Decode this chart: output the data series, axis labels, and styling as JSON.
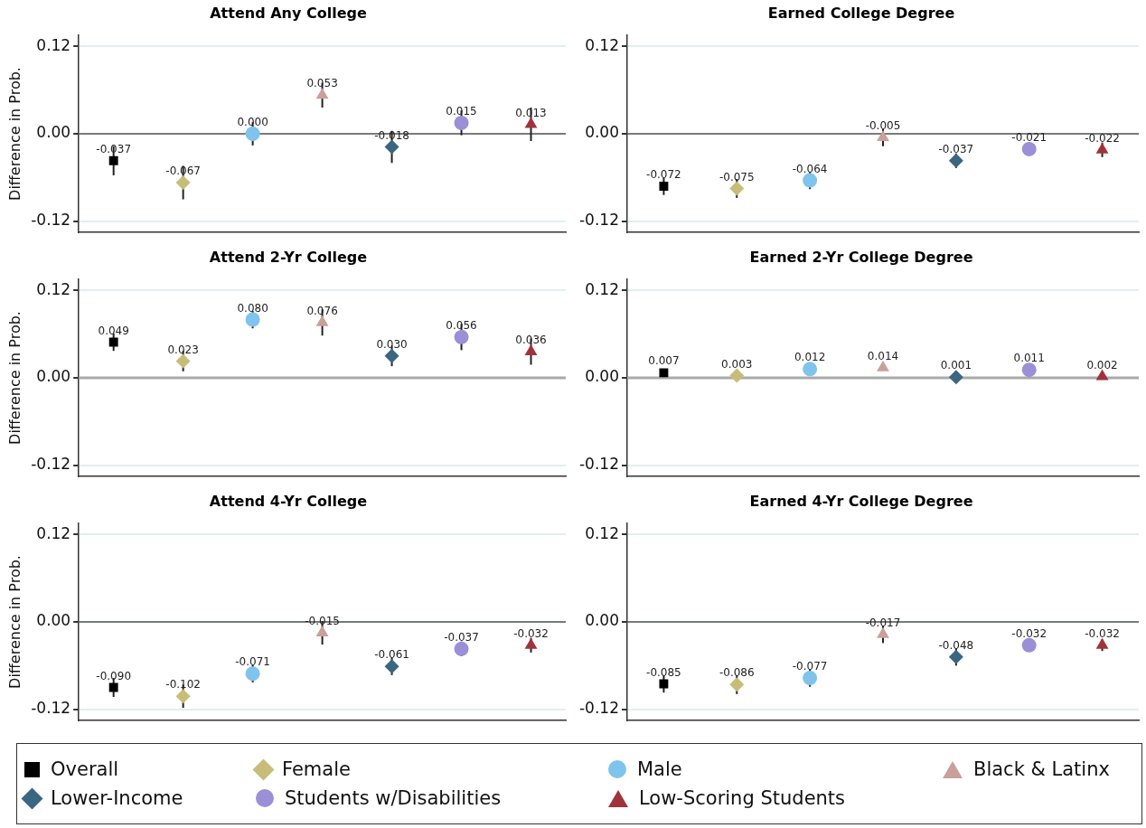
{
  "chart_data": [
    {
      "type": "scatter",
      "title": "Attend Any College",
      "ylabel": "Difference in Prob.",
      "categories": [
        null,
        null,
        null,
        null,
        null,
        null,
        null
      ],
      "ylim": [
        -0.135,
        0.135
      ],
      "yticks": [
        {
          "value": -0.12,
          "label": "-0.12"
        },
        {
          "value": 0,
          "label": "0.00"
        },
        {
          "value": 0.12,
          "label": "0.12"
        }
      ],
      "grid": "y",
      "tick_labels": "y",
      "data_labels": true,
      "legend": "bottom",
      "ref_lines": [
        {
          "axis": "y",
          "value": 0,
          "color": "#555555"
        }
      ],
      "series": [
        {
          "name": "Overall",
          "color": "#000000",
          "marker": "square",
          "values": [
            -0.037,
            null,
            null,
            null,
            null,
            null,
            null
          ],
          "errors": [
            0.02,
            null,
            null,
            null,
            null,
            null,
            null
          ]
        },
        {
          "name": "Female",
          "color": "#c8bd78",
          "marker": "diamond",
          "values": [
            null,
            -0.067,
            null,
            null,
            null,
            null,
            null
          ],
          "errors": [
            null,
            0.023,
            null,
            null,
            null,
            null,
            null
          ]
        },
        {
          "name": "Male",
          "color": "#7fc4ec",
          "marker": "circle",
          "values": [
            null,
            null,
            0,
            null,
            null,
            null,
            null
          ],
          "value_labels": [
            null,
            null,
            "0.000",
            null,
            null,
            null,
            null
          ],
          "errors": [
            null,
            null,
            0.016,
            null,
            null,
            null,
            null
          ]
        },
        {
          "name": "Black & Latinx",
          "color": "#c9a09a",
          "marker": "triangle",
          "values": [
            null,
            null,
            null,
            0.053,
            null,
            null,
            null
          ],
          "errors": [
            null,
            null,
            null,
            0.017,
            null,
            null,
            null
          ]
        },
        {
          "name": "Lower-Income",
          "color": "#3b6680",
          "marker": "diamond",
          "values": [
            null,
            null,
            null,
            null,
            -0.018,
            null,
            null
          ],
          "errors": [
            null,
            null,
            null,
            null,
            0.022,
            null,
            null
          ]
        },
        {
          "name": "Students w/Disabilities",
          "color": "#9b8fd8",
          "marker": "circle",
          "values": [
            null,
            null,
            null,
            null,
            null,
            0.015,
            null
          ],
          "errors": [
            null,
            null,
            null,
            null,
            null,
            0.017,
            null
          ]
        },
        {
          "name": "Low-Scoring Students",
          "color": "#a0333a",
          "marker": "triangle",
          "values": [
            null,
            null,
            null,
            null,
            null,
            null,
            0.013
          ],
          "errors": [
            null,
            null,
            null,
            null,
            null,
            null,
            0.023
          ]
        }
      ]
    },
    {
      "type": "scatter",
      "title": "Earned College Degree",
      "categories": [
        null,
        null,
        null,
        null,
        null,
        null,
        null
      ],
      "ylim": [
        -0.135,
        0.135
      ],
      "yticks": [
        {
          "value": -0.12,
          "label": "-0.12"
        },
        {
          "value": 0,
          "label": "0.00"
        },
        {
          "value": 0.12,
          "label": "0.12"
        }
      ],
      "grid": "y",
      "tick_labels": "y",
      "data_labels": true,
      "ref_lines": [
        {
          "axis": "y",
          "value": 0,
          "color": "#555555"
        }
      ],
      "series": [
        {
          "color": "#000000",
          "marker": "square",
          "values": [
            -0.072,
            null,
            null,
            null,
            null,
            null,
            null
          ],
          "errors": [
            0.012,
            null,
            null,
            null,
            null,
            null,
            null
          ]
        },
        {
          "color": "#c8bd78",
          "marker": "diamond",
          "values": [
            null,
            -0.075,
            null,
            null,
            null,
            null,
            null
          ],
          "errors": [
            null,
            0.013,
            null,
            null,
            null,
            null,
            null
          ]
        },
        {
          "color": "#7fc4ec",
          "marker": "circle",
          "values": [
            null,
            null,
            -0.064,
            null,
            null,
            null,
            null
          ],
          "errors": [
            null,
            null,
            0.012,
            null,
            null,
            null,
            null
          ]
        },
        {
          "color": "#c9a09a",
          "marker": "triangle",
          "values": [
            null,
            null,
            null,
            -0.005,
            null,
            null,
            null
          ],
          "errors": [
            null,
            null,
            null,
            0.012,
            null,
            null,
            null
          ]
        },
        {
          "color": "#3b6680",
          "marker": "diamond",
          "values": [
            null,
            null,
            null,
            null,
            -0.037,
            null,
            null
          ],
          "errors": [
            null,
            null,
            null,
            null,
            0.01,
            null,
            null
          ]
        },
        {
          "color": "#9b8fd8",
          "marker": "circle",
          "values": [
            null,
            null,
            null,
            null,
            null,
            -0.021,
            null
          ]
        },
        {
          "color": "#a0333a",
          "marker": "triangle",
          "values": [
            null,
            null,
            null,
            null,
            null,
            null,
            -0.022
          ],
          "errors": [
            null,
            null,
            null,
            null,
            null,
            null,
            0.01
          ]
        }
      ]
    },
    {
      "type": "scatter",
      "title": "Attend 2-Yr College",
      "ylabel": "Difference in Prob.",
      "categories": [
        null,
        null,
        null,
        null,
        null,
        null,
        null
      ],
      "ylim": [
        -0.135,
        0.135
      ],
      "yticks": [
        {
          "value": -0.12,
          "label": "-0.12"
        },
        {
          "value": 0,
          "label": "0.00"
        },
        {
          "value": 0.12,
          "label": "0.12"
        }
      ],
      "grid": "y",
      "tick_labels": "y",
      "data_labels": true,
      "ref_lines": [
        {
          "axis": "y",
          "value": 0,
          "color": "#aaaaaa"
        }
      ],
      "series": [
        {
          "color": "#000000",
          "marker": "square",
          "values": [
            0.049,
            null,
            null,
            null,
            null,
            null,
            null
          ],
          "errors": [
            0.012,
            null,
            null,
            null,
            null,
            null,
            null
          ]
        },
        {
          "color": "#c8bd78",
          "marker": "diamond",
          "values": [
            null,
            0.023,
            null,
            null,
            null,
            null,
            null
          ],
          "errors": [
            null,
            0.014,
            null,
            null,
            null,
            null,
            null
          ]
        },
        {
          "color": "#7fc4ec",
          "marker": "circle",
          "values": [
            null,
            null,
            0.08,
            null,
            null,
            null,
            null
          ],
          "value_labels": [
            null,
            null,
            "0.080",
            null,
            null,
            null,
            null
          ],
          "errors": [
            null,
            null,
            0.012,
            null,
            null,
            null,
            null
          ]
        },
        {
          "color": "#c9a09a",
          "marker": "triangle",
          "values": [
            null,
            null,
            null,
            0.076,
            null,
            null,
            null
          ],
          "errors": [
            null,
            null,
            null,
            0.018,
            null,
            null,
            null
          ]
        },
        {
          "color": "#3b6680",
          "marker": "diamond",
          "values": [
            null,
            null,
            null,
            null,
            0.03,
            null,
            null
          ],
          "value_labels": [
            null,
            null,
            null,
            null,
            "0.030",
            null,
            null
          ],
          "errors": [
            null,
            null,
            null,
            null,
            0.014,
            null,
            null
          ]
        },
        {
          "color": "#9b8fd8",
          "marker": "circle",
          "values": [
            null,
            null,
            null,
            null,
            null,
            0.056,
            null
          ],
          "errors": [
            null,
            null,
            null,
            null,
            null,
            0.018,
            null
          ]
        },
        {
          "color": "#a0333a",
          "marker": "triangle",
          "values": [
            null,
            null,
            null,
            null,
            null,
            null,
            0.036
          ],
          "errors": [
            null,
            null,
            null,
            null,
            null,
            null,
            0.018
          ]
        }
      ]
    },
    {
      "type": "scatter",
      "title": "Earned 2-Yr College Degree",
      "categories": [
        null,
        null,
        null,
        null,
        null,
        null,
        null
      ],
      "ylim": [
        -0.135,
        0.135
      ],
      "yticks": [
        {
          "value": -0.12,
          "label": "-0.12"
        },
        {
          "value": 0,
          "label": "0.00"
        },
        {
          "value": 0.12,
          "label": "0.12"
        }
      ],
      "grid": "y",
      "tick_labels": "y",
      "data_labels": true,
      "ref_lines": [
        {
          "axis": "y",
          "value": 0,
          "color": "#aaaaaa"
        }
      ],
      "series": [
        {
          "color": "#000000",
          "marker": "square",
          "values": [
            0.007,
            null,
            null,
            null,
            null,
            null,
            null
          ]
        },
        {
          "color": "#c8bd78",
          "marker": "diamond",
          "values": [
            null,
            0.003,
            null,
            null,
            null,
            null,
            null
          ]
        },
        {
          "color": "#7fc4ec",
          "marker": "circle",
          "values": [
            null,
            null,
            0.012,
            null,
            null,
            null,
            null
          ]
        },
        {
          "color": "#c9a09a",
          "marker": "triangle",
          "values": [
            null,
            null,
            null,
            0.014,
            null,
            null,
            null
          ]
        },
        {
          "color": "#3b6680",
          "marker": "diamond",
          "values": [
            null,
            null,
            null,
            null,
            0.001,
            null,
            null
          ]
        },
        {
          "color": "#9b8fd8",
          "marker": "circle",
          "values": [
            null,
            null,
            null,
            null,
            null,
            0.011,
            null
          ]
        },
        {
          "color": "#a0333a",
          "marker": "triangle",
          "values": [
            null,
            null,
            null,
            null,
            null,
            null,
            0.002
          ]
        }
      ]
    },
    {
      "type": "scatter",
      "title": "Attend 4-Yr College",
      "ylabel": "Difference in Prob.",
      "categories": [
        null,
        null,
        null,
        null,
        null,
        null,
        null
      ],
      "ylim": [
        -0.135,
        0.135
      ],
      "yticks": [
        {
          "value": -0.12,
          "label": "-0.12"
        },
        {
          "value": 0,
          "label": "0.00"
        },
        {
          "value": 0.12,
          "label": "0.12"
        }
      ],
      "grid": "y",
      "tick_labels": "y",
      "data_labels": true,
      "ref_lines": [
        {
          "axis": "y",
          "value": 0,
          "color": "#555555"
        }
      ],
      "series": [
        {
          "color": "#000000",
          "marker": "square",
          "values": [
            -0.09,
            null,
            null,
            null,
            null,
            null,
            null
          ],
          "value_labels": [
            "-0.090",
            null,
            null,
            null,
            null,
            null,
            null
          ],
          "errors": [
            0.013,
            null,
            null,
            null,
            null,
            null,
            null
          ]
        },
        {
          "color": "#c8bd78",
          "marker": "diamond",
          "values": [
            null,
            -0.102,
            null,
            null,
            null,
            null,
            null
          ],
          "errors": [
            null,
            0.016,
            null,
            null,
            null,
            null,
            null
          ]
        },
        {
          "color": "#7fc4ec",
          "marker": "circle",
          "values": [
            null,
            null,
            -0.071,
            null,
            null,
            null,
            null
          ],
          "errors": [
            null,
            null,
            0.012,
            null,
            null,
            null,
            null
          ]
        },
        {
          "color": "#c9a09a",
          "marker": "triangle",
          "values": [
            null,
            null,
            null,
            -0.015,
            null,
            null,
            null
          ],
          "errors": [
            null,
            null,
            null,
            0.016,
            null,
            null,
            null
          ]
        },
        {
          "color": "#3b6680",
          "marker": "diamond",
          "values": [
            null,
            null,
            null,
            null,
            -0.061,
            null,
            null
          ],
          "errors": [
            null,
            null,
            null,
            null,
            0.012,
            null,
            null
          ]
        },
        {
          "color": "#9b8fd8",
          "marker": "circle",
          "values": [
            null,
            null,
            null,
            null,
            null,
            -0.037,
            null
          ],
          "errors": [
            null,
            null,
            null,
            null,
            null,
            0.01,
            null
          ]
        },
        {
          "color": "#a0333a",
          "marker": "triangle",
          "values": [
            null,
            null,
            null,
            null,
            null,
            null,
            -0.032
          ],
          "errors": [
            null,
            null,
            null,
            null,
            null,
            null,
            0.01
          ]
        }
      ]
    },
    {
      "type": "scatter",
      "title": "Earned 4-Yr College Degree",
      "categories": [
        null,
        null,
        null,
        null,
        null,
        null,
        null
      ],
      "ylim": [
        -0.135,
        0.135
      ],
      "yticks": [
        {
          "value": -0.12,
          "label": "-0.12"
        },
        {
          "value": 0,
          "label": "0.00"
        },
        {
          "value": 0.12,
          "label": "0.12"
        }
      ],
      "grid": "y",
      "tick_labels": "y",
      "data_labels": true,
      "ref_lines": [
        {
          "axis": "y",
          "value": 0,
          "color": "#555555"
        }
      ],
      "series": [
        {
          "color": "#000000",
          "marker": "square",
          "values": [
            -0.085,
            null,
            null,
            null,
            null,
            null,
            null
          ],
          "errors": [
            0.012,
            null,
            null,
            null,
            null,
            null,
            null
          ]
        },
        {
          "color": "#c8bd78",
          "marker": "diamond",
          "values": [
            null,
            -0.086,
            null,
            null,
            null,
            null,
            null
          ],
          "errors": [
            null,
            0.013,
            null,
            null,
            null,
            null,
            null
          ]
        },
        {
          "color": "#7fc4ec",
          "marker": "circle",
          "values": [
            null,
            null,
            -0.077,
            null,
            null,
            null,
            null
          ],
          "errors": [
            null,
            null,
            0.012,
            null,
            null,
            null,
            null
          ]
        },
        {
          "color": "#c9a09a",
          "marker": "triangle",
          "values": [
            null,
            null,
            null,
            -0.017,
            null,
            null,
            null
          ],
          "errors": [
            null,
            null,
            null,
            0.012,
            null,
            null,
            null
          ]
        },
        {
          "color": "#3b6680",
          "marker": "diamond",
          "values": [
            null,
            null,
            null,
            null,
            -0.048,
            null,
            null
          ],
          "errors": [
            null,
            null,
            null,
            null,
            0.012,
            null,
            null
          ]
        },
        {
          "color": "#9b8fd8",
          "marker": "circle",
          "values": [
            null,
            null,
            null,
            null,
            null,
            -0.032,
            null
          ]
        },
        {
          "color": "#a0333a",
          "marker": "triangle",
          "values": [
            null,
            null,
            null,
            null,
            null,
            null,
            -0.032
          ],
          "errors": [
            null,
            null,
            null,
            null,
            null,
            null,
            0.008
          ]
        }
      ]
    }
  ]
}
